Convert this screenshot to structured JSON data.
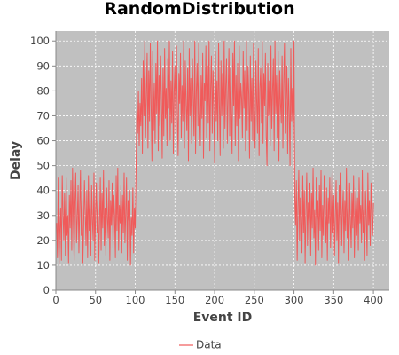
{
  "chart_data": {
    "type": "line",
    "title": "RandomDistribution",
    "xlabel": "Event ID",
    "ylabel": "Delay",
    "xlim": [
      0,
      420
    ],
    "ylim": [
      0,
      104
    ],
    "x_ticks": [
      0,
      50,
      100,
      150,
      200,
      250,
      300,
      350,
      400
    ],
    "y_ticks": [
      0,
      10,
      20,
      30,
      40,
      50,
      60,
      70,
      80,
      90,
      100
    ],
    "grid": true,
    "legend_position": "bottom",
    "colors": {
      "plot_background": "#c0c0c0",
      "series": "#f05a5a",
      "grid": "#ffffff"
    },
    "series": [
      {
        "name": "Data",
        "x_start": 1,
        "x_step": 1,
        "values": [
          27,
          13,
          45,
          10,
          24,
          33,
          12,
          46,
          31,
          20,
          39,
          14,
          45,
          22,
          30,
          11,
          38,
          25,
          44,
          16,
          49,
          28,
          12,
          35,
          47,
          19,
          29,
          42,
          15,
          33,
          48,
          22,
          37,
          11,
          26,
          44,
          31,
          18,
          40,
          13,
          46,
          24,
          35,
          14,
          42,
          28,
          20,
          47,
          12,
          31,
          43,
          23,
          36,
          11,
          27,
          45,
          16,
          39,
          25,
          48,
          18,
          33,
          14,
          41,
          29,
          21,
          44,
          12,
          36,
          26,
          43,
          17,
          38,
          30,
          13,
          46,
          24,
          49,
          16,
          34,
          27,
          42,
          15,
          38,
          23,
          47,
          19,
          31,
          45,
          12,
          36,
          28,
          40,
          10,
          29,
          22,
          41,
          15,
          33,
          25,
          48,
          72,
          63,
          80,
          58,
          75,
          66,
          85,
          55,
          92,
          70,
          100,
          61,
          78,
          95,
          57,
          88,
          68,
          99,
          74,
          52,
          96,
          64,
          83,
          59,
          91,
          71,
          100,
          56,
          86,
          66,
          94,
          76,
          53,
          89,
          62,
          97,
          69,
          81,
          58,
          93,
          73,
          100,
          60,
          84,
          67,
          96,
          55,
          79,
          90,
          63,
          98,
          71,
          54,
          87,
          75,
          95,
          61,
          82,
          68,
          100,
          57,
          92,
          74,
          64,
          89,
          52,
          97,
          70,
          85,
          59,
          93,
          77,
          62,
          100,
          55,
          80,
          91,
          66,
          99,
          72,
          58,
          86,
          69,
          95,
          53,
          83,
          76,
          98,
          61,
          90,
          67,
          100,
          56,
          81,
          94,
          63,
          88,
          73,
          51,
          96,
          68,
          84,
          60,
          99,
          75,
          54,
          92,
          70,
          87,
          57,
          100,
          65,
          82,
          93,
          59,
          78,
          97,
          62,
          89,
          71,
          55,
          95,
          74,
          100,
          58,
          86,
          66,
          91,
          52,
          98,
          69,
          83,
          77,
          61,
          96,
          73,
          88,
          56,
          100,
          64,
          90,
          79,
          53,
          94,
          68,
          85,
          60,
          99,
          72,
          57,
          92,
          76,
          63,
          97,
          54,
          81,
          89,
          67,
          100,
          59,
          87,
          74,
          95,
          62,
          50,
          91,
          70,
          84,
          58,
          98,
          65,
          80,
          93,
          56,
          100,
          71,
          86,
          61,
          96,
          52,
          88,
          75,
          67,
          94,
          57,
          83,
          99,
          63,
          78,
          90,
          55,
          85,
          72,
          50,
          97,
          68,
          81,
          60,
          100,
          38,
          26,
          44,
          12,
          33,
          48,
          20,
          37,
          29,
          15,
          46,
          23,
          40,
          11,
          31,
          47,
          18,
          35,
          27,
          43,
          14,
          39,
          25,
          49,
          21,
          32,
          10,
          45,
          28,
          36,
          16,
          42,
          24,
          48,
          13,
          34,
          22,
          46,
          30,
          19,
          41,
          12,
          37,
          27,
          45,
          17,
          33,
          48,
          23,
          38,
          14,
          29,
          44,
          20,
          35,
          11,
          42,
          26,
          47,
          18,
          31,
          40,
          15,
          36,
          24,
          49,
          21,
          33,
          12,
          43,
          28,
          17,
          39,
          25,
          46,
          13,
          30,
          41,
          22,
          37,
          16,
          45,
          27,
          34,
          19,
          48,
          23,
          32,
          12,
          40,
          29,
          14,
          47,
          26,
          36,
          18,
          43,
          31,
          22,
          35
        ]
      }
    ]
  }
}
